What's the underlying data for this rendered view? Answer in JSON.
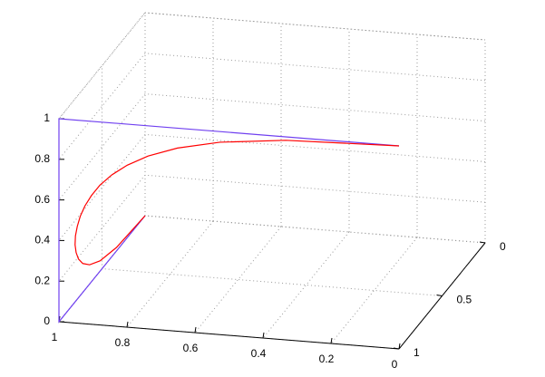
{
  "chart_data": {
    "type": "line3d",
    "xlim": [
      0,
      1
    ],
    "ylim": [
      0,
      1
    ],
    "zlim": [
      0,
      1
    ],
    "xticks": [
      0,
      0.2,
      0.4,
      0.6,
      0.8,
      1
    ],
    "yticks": [
      0,
      0.5,
      1
    ],
    "zticks": [
      0,
      0.2,
      0.4,
      0.6,
      0.8,
      1
    ],
    "grid": true,
    "series": [
      {
        "color": "#7040f0",
        "x": [
          1,
          1,
          1,
          0
        ],
        "y": [
          0,
          1,
          1,
          1
        ],
        "z": [
          0,
          0,
          1,
          1
        ]
      },
      {
        "color": "#ff0000",
        "x": [
          1,
          1,
          0.999,
          0.998,
          0.996,
          0.993,
          0.988,
          0.982,
          0.974,
          0.963,
          0.95,
          0.933,
          0.911,
          0.884,
          0.848,
          0.801,
          0.739,
          0.652,
          0.527,
          0.333,
          0
        ],
        "y": [
          0,
          0.333,
          0.527,
          0.652,
          0.739,
          0.801,
          0.848,
          0.884,
          0.911,
          0.933,
          0.95,
          0.963,
          0.974,
          0.982,
          0.988,
          0.993,
          0.996,
          0.998,
          0.999,
          1,
          1
        ],
        "z": [
          0,
          0.017,
          0.053,
          0.099,
          0.151,
          0.206,
          0.263,
          0.321,
          0.38,
          0.44,
          0.5,
          0.56,
          0.62,
          0.679,
          0.737,
          0.794,
          0.849,
          0.901,
          0.947,
          0.983,
          1
        ]
      }
    ]
  }
}
